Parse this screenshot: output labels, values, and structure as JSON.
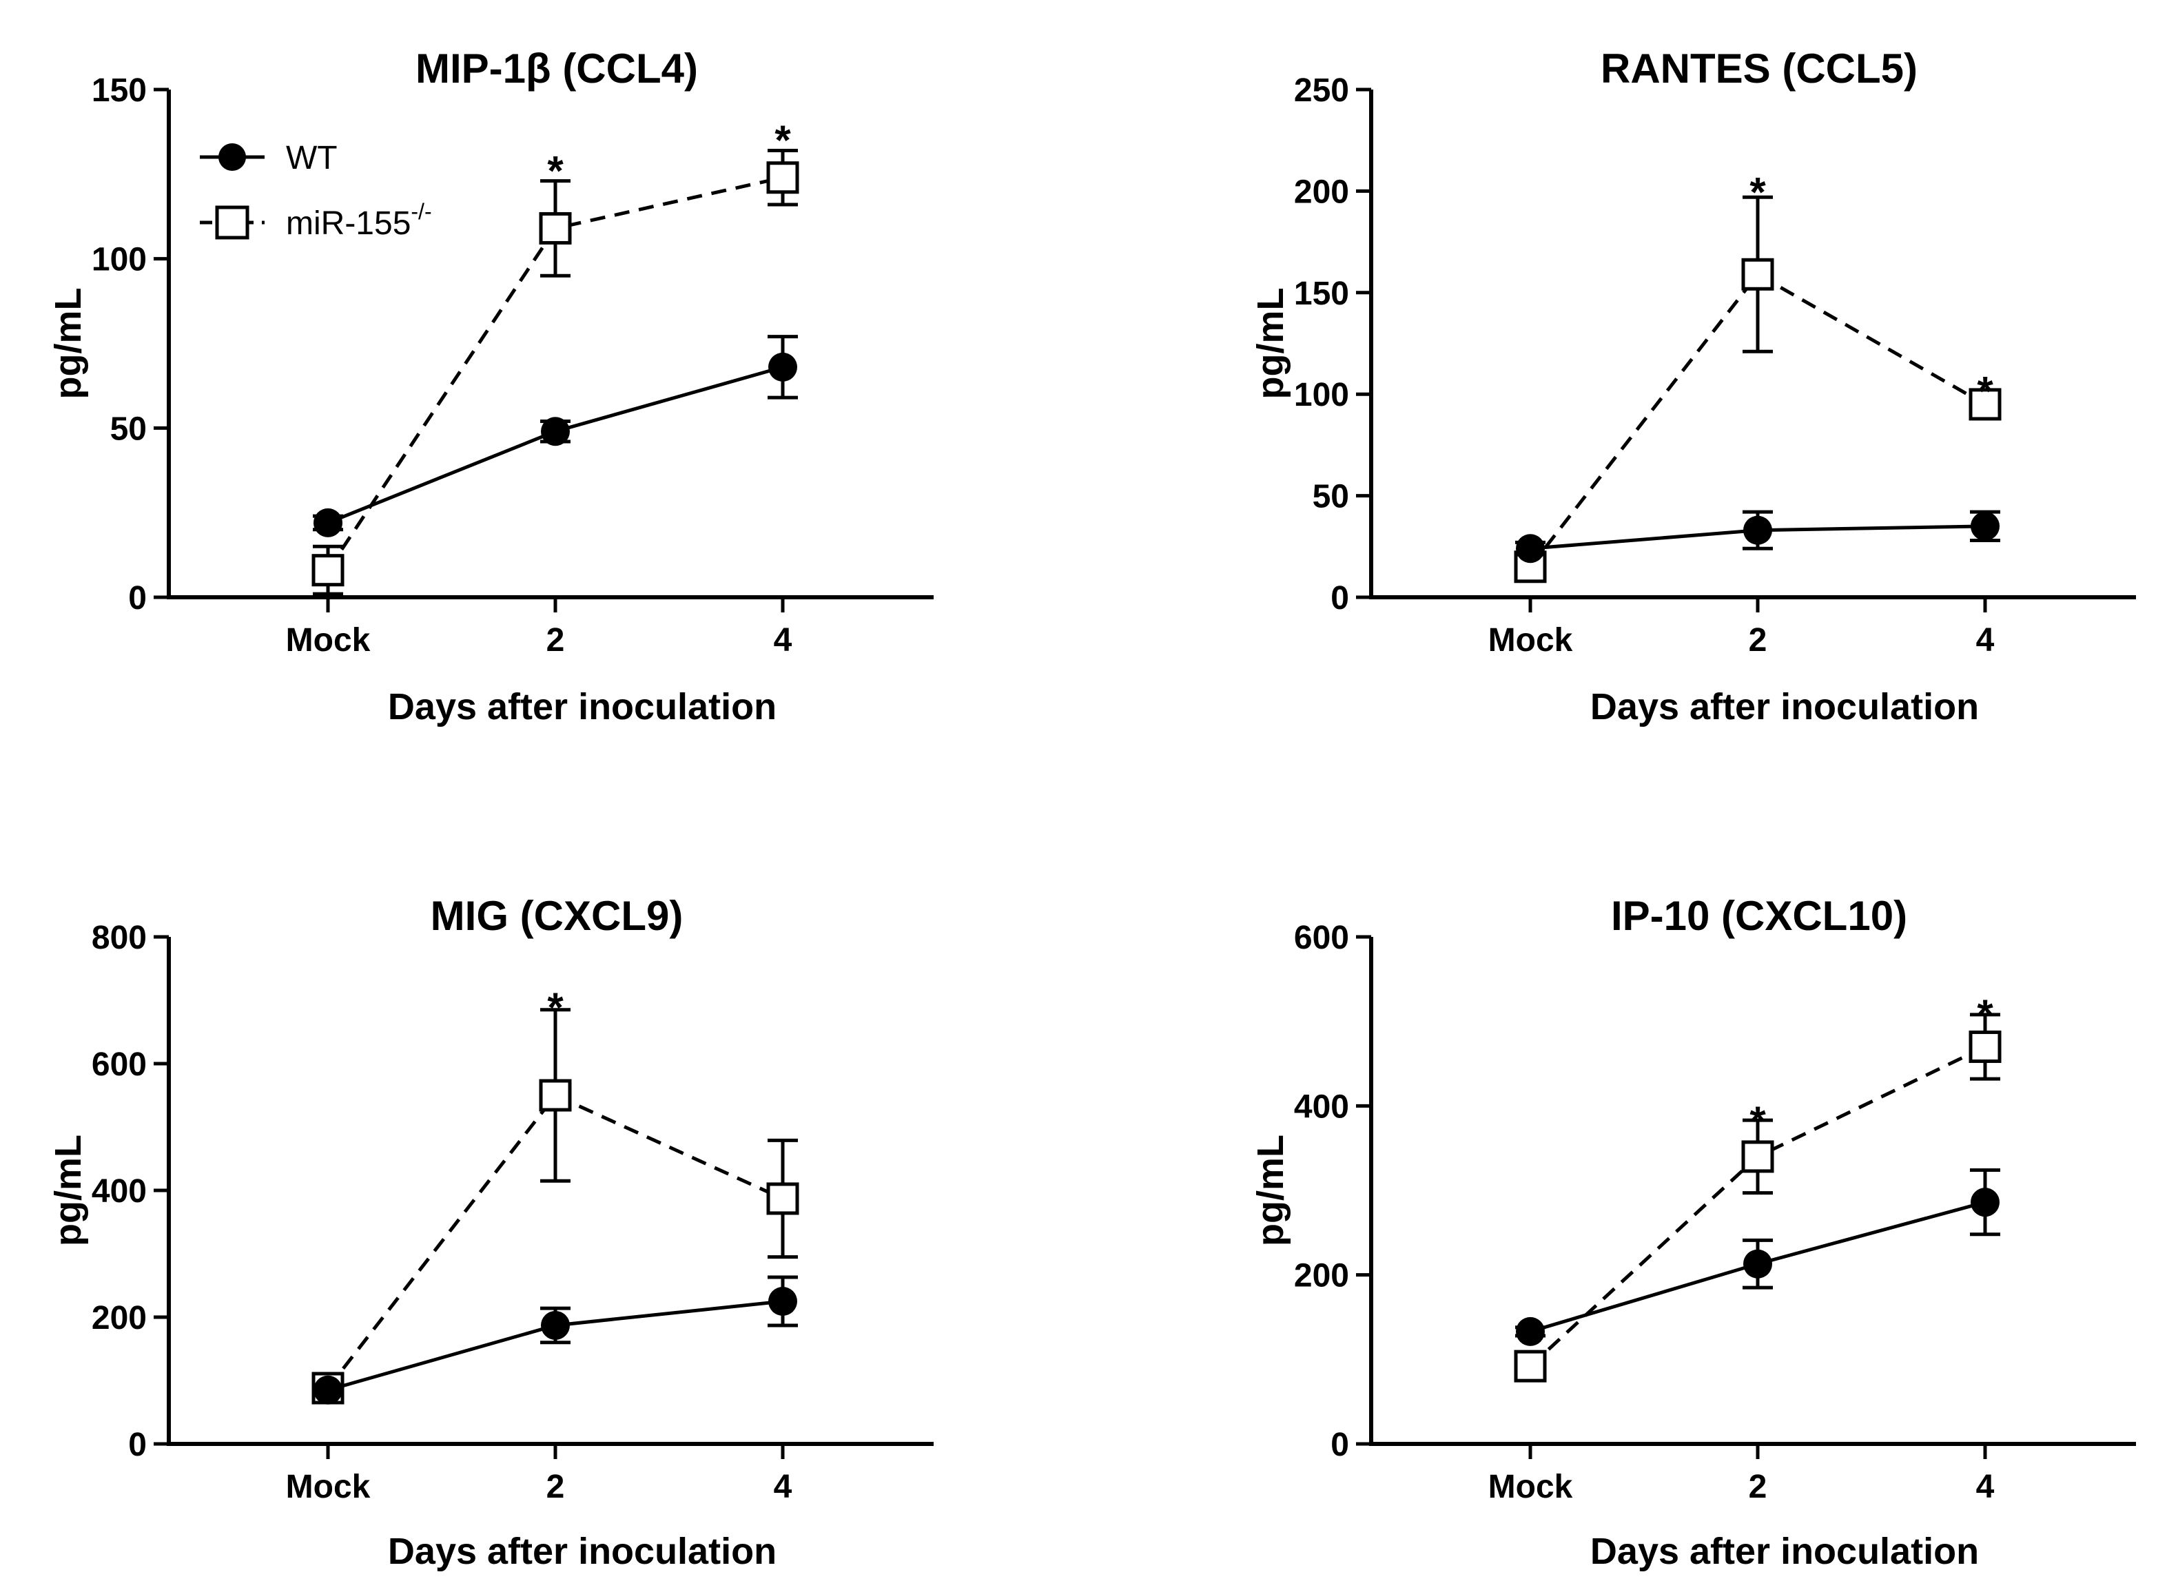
{
  "figure": {
    "legend": {
      "position": "top-left",
      "entries": [
        {
          "label": "WT",
          "sup": "",
          "marker": "filled-circle",
          "line": "solid"
        },
        {
          "label": "miR-155",
          "sup": "-/-",
          "marker": "open-square",
          "line": "dashed"
        }
      ]
    }
  },
  "chart_data": [
    {
      "type": "line",
      "title": "MIP-1β (CCL4)",
      "xlabel": "Days after inoculation",
      "ylabel": "pg/mL",
      "categories": [
        "Mock",
        "2",
        "4"
      ],
      "ylim": [
        0,
        150
      ],
      "yticks": [
        0,
        50,
        100,
        150
      ],
      "grid": false,
      "series": [
        {
          "name": "WT",
          "values": [
            22,
            49,
            68
          ],
          "errors": [
            2,
            3,
            9
          ]
        },
        {
          "name": "miR-155-/-",
          "values": [
            8,
            109,
            124
          ],
          "errors": [
            7,
            14,
            8
          ]
        }
      ],
      "annotations": [
        {
          "category": "2",
          "y": 130,
          "text": "*"
        },
        {
          "category": "4",
          "y": 139,
          "text": "*"
        }
      ]
    },
    {
      "type": "line",
      "title": "RANTES (CCL5)",
      "xlabel": "Days after inoculation",
      "ylabel": "pg/mL",
      "categories": [
        "Mock",
        "2",
        "4"
      ],
      "ylim": [
        0,
        250
      ],
      "yticks": [
        0,
        50,
        100,
        150,
        200,
        250
      ],
      "grid": false,
      "series": [
        {
          "name": "WT",
          "values": [
            24,
            33,
            35
          ],
          "errors": [
            3,
            9,
            7
          ]
        },
        {
          "name": "miR-155-/-",
          "values": [
            15,
            159,
            95
          ],
          "errors": [
            3,
            38,
            6
          ]
        }
      ],
      "annotations": [
        {
          "category": "2",
          "y": 206,
          "text": "*"
        },
        {
          "category": "4",
          "y": 108,
          "text": "*"
        }
      ]
    },
    {
      "type": "line",
      "title": "MIG (CXCL9)",
      "xlabel": "Days after inoculation",
      "ylabel": "pg/mL",
      "categories": [
        "Mock",
        "2",
        "4"
      ],
      "ylim": [
        0,
        800
      ],
      "yticks": [
        0,
        200,
        400,
        600,
        800
      ],
      "grid": false,
      "series": [
        {
          "name": "WT",
          "values": [
            85,
            187,
            225
          ],
          "errors": [
            6,
            27,
            38
          ]
        },
        {
          "name": "miR-155-/-",
          "values": [
            88,
            550,
            387
          ],
          "errors": [
            6,
            135,
            92
          ]
        }
      ],
      "annotations": [
        {
          "category": "2",
          "y": 710,
          "text": "*"
        }
      ]
    },
    {
      "type": "line",
      "title": "IP-10 (CXCL10)",
      "xlabel": "Days after inoculation",
      "ylabel": "pg/mL",
      "categories": [
        "Mock",
        "2",
        "4"
      ],
      "ylim": [
        0,
        600
      ],
      "yticks": [
        0,
        200,
        400,
        600
      ],
      "grid": false,
      "series": [
        {
          "name": "WT",
          "values": [
            133,
            213,
            286
          ],
          "errors": [
            5,
            28,
            38
          ]
        },
        {
          "name": "miR-155-/-",
          "values": [
            92,
            340,
            470
          ],
          "errors": [
            9,
            43,
            38
          ]
        }
      ],
      "annotations": [
        {
          "category": "2",
          "y": 398,
          "text": "*"
        },
        {
          "category": "4",
          "y": 524,
          "text": "*"
        }
      ]
    }
  ]
}
